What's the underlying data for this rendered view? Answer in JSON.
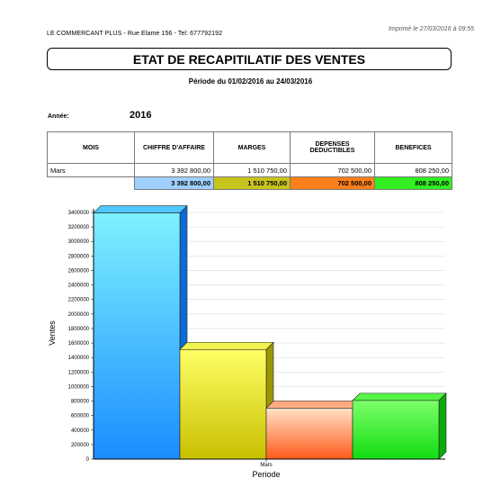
{
  "header": {
    "company_line": "LE COMMERCANT PLUS - Rue Elame 156 - Tel: 677792192",
    "printed_on": "Imprimé le 27/03/2016 à 09:55"
  },
  "title": "ETAT DE RECAPITILATIF DES VENTES",
  "period": "Période du 01/02/2016 au 24/03/2016",
  "year": {
    "label": "Année:",
    "value": "2016"
  },
  "table": {
    "columns": [
      "MOIS",
      "CHIFFRE D'AFFAIRE",
      "MARGES",
      "DEPENSES DEDUCTIBLES",
      "BENEFICES"
    ],
    "rows": [
      {
        "mois": "Mars",
        "chiffre": "3 392 800,00",
        "marges": "1 510 750,00",
        "depenses": "702 500,00",
        "benefices": "808 250,00"
      }
    ],
    "totals": {
      "chiffre": "3 392 800,00",
      "marges": "1 510 750,00",
      "depenses": "702 500,00",
      "benefices": "808 250,00"
    }
  },
  "colors": {
    "chiffre": "#9fd0ff",
    "marges": "#c8c41e",
    "depenses": "#ff7f1a",
    "benefices": "#33ee22"
  },
  "chart_data": {
    "type": "bar",
    "categories": [
      "Mars"
    ],
    "series": [
      {
        "values": [
          3392800
        ],
        "color": "#3aa6ff"
      },
      {
        "values": [
          1510750
        ],
        "color": "#e8e840"
      },
      {
        "values": [
          702500
        ],
        "color": "#ff9966"
      },
      {
        "values": [
          808250
        ],
        "color": "#33ee33"
      }
    ],
    "xlabel": "Periode",
    "ylabel": "Ventes",
    "ylim": [
      0,
      3400000
    ],
    "yticks": [
      "0",
      "200000",
      "400000",
      "600000",
      "800000",
      "1000000",
      "1200000",
      "1400000",
      "1600000",
      "1800000",
      "2000000",
      "2200000",
      "2400000",
      "2600000",
      "2800000",
      "3000000",
      "3200000",
      "3400000"
    ],
    "grid": true
  }
}
